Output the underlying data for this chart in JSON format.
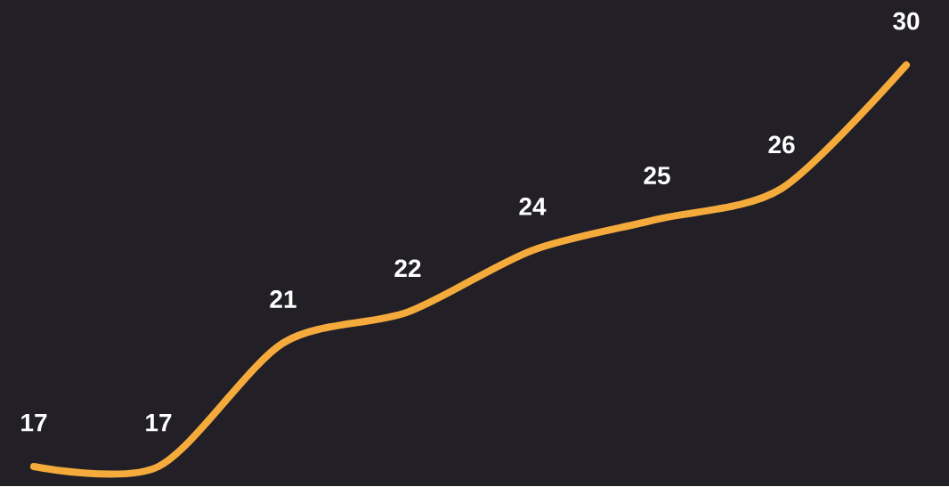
{
  "chart_data": {
    "type": "line",
    "categories": [
      null,
      null,
      null,
      null,
      null,
      null,
      null,
      null
    ],
    "series": [
      {
        "color": "#f5ab3c",
        "values": [
          17,
          17,
          21,
          22,
          24,
          25,
          26,
          30
        ]
      }
    ],
    "data_labels": true,
    "marker": "none",
    "line_style": "solid"
  }
}
